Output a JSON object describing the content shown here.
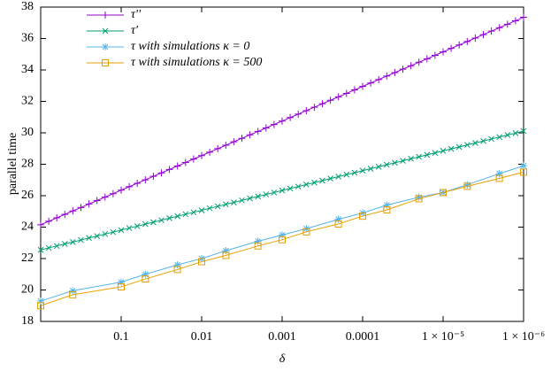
{
  "chart_data": {
    "type": "line",
    "x_label": "δ",
    "y_label": "parallel time",
    "xscale": "log",
    "xlim": [
      1,
      1e-06
    ],
    "ylim": [
      18,
      38
    ],
    "xticks": [
      0.1,
      0.01,
      0.001,
      0.0001,
      {
        "value": 1e-05,
        "label": "1 × 10⁻⁵"
      },
      {
        "value": 1e-06,
        "label": "1 × 10⁻⁶"
      }
    ],
    "yticks": [
      18,
      20,
      22,
      24,
      26,
      28,
      30,
      32,
      34,
      36,
      38
    ],
    "legend": "top-left",
    "series": [
      {
        "name": "τ′′",
        "color": "#9400d3",
        "marker": "plus",
        "x": [
          1,
          0.7943,
          0.631,
          0.5012,
          0.3981,
          0.3162,
          0.2512,
          0.1995,
          0.1585,
          0.1259,
          0.1,
          0.07943,
          0.0631,
          0.05012,
          0.03981,
          0.03162,
          0.02512,
          0.01995,
          0.01585,
          0.01259,
          0.01,
          0.007943,
          0.00631,
          0.005012,
          0.003981,
          0.003162,
          0.002512,
          0.001995,
          0.001585,
          0.001259,
          0.001,
          0.0007943,
          0.000631,
          0.0005012,
          0.0003981,
          0.0003162,
          0.0002512,
          0.0001995,
          0.0001585,
          0.0001259,
          0.0001,
          7.943e-05,
          6.31e-05,
          5.012e-05,
          3.981e-05,
          3.162e-05,
          2.512e-05,
          1.995e-05,
          1.585e-05,
          1.259e-05,
          1e-05,
          7.943e-06,
          6.31e-06,
          5.012e-06,
          3.981e-06,
          3.162e-06,
          2.512e-06,
          1.995e-06,
          1.585e-06,
          1.259e-06,
          1e-06
        ],
        "values": [
          24.15,
          24.37,
          24.59,
          24.81,
          25.03,
          25.25,
          25.47,
          25.69,
          25.91,
          26.13,
          26.35,
          26.57,
          26.79,
          27.01,
          27.23,
          27.45,
          27.67,
          27.89,
          28.11,
          28.33,
          28.55,
          28.77,
          28.99,
          29.21,
          29.43,
          29.65,
          29.87,
          30.09,
          30.31,
          30.53,
          30.75,
          30.97,
          31.19,
          31.41,
          31.63,
          31.85,
          32.07,
          32.29,
          32.51,
          32.73,
          32.95,
          33.17,
          33.39,
          33.61,
          33.83,
          34.05,
          34.27,
          34.49,
          34.71,
          34.93,
          35.15,
          35.37,
          35.59,
          35.81,
          36.03,
          36.25,
          36.47,
          36.69,
          36.91,
          37.13,
          37.35
        ]
      },
      {
        "name": "τ′",
        "color": "#009e73",
        "marker": "cross",
        "x": [
          1,
          0.7943,
          0.631,
          0.5012,
          0.3981,
          0.3162,
          0.2512,
          0.1995,
          0.1585,
          0.1259,
          0.1,
          0.07943,
          0.0631,
          0.05012,
          0.03981,
          0.03162,
          0.02512,
          0.01995,
          0.01585,
          0.01259,
          0.01,
          0.007943,
          0.00631,
          0.005012,
          0.003981,
          0.003162,
          0.002512,
          0.001995,
          0.001585,
          0.001259,
          0.001,
          0.0007943,
          0.000631,
          0.0005012,
          0.0003981,
          0.0003162,
          0.0002512,
          0.0001995,
          0.0001585,
          0.0001259,
          0.0001,
          7.943e-05,
          6.31e-05,
          5.012e-05,
          3.981e-05,
          3.162e-05,
          2.512e-05,
          1.995e-05,
          1.585e-05,
          1.259e-05,
          1e-05,
          7.943e-06,
          6.31e-06,
          5.012e-06,
          3.981e-06,
          3.162e-06,
          2.512e-06,
          1.995e-06,
          1.585e-06,
          1.259e-06,
          1e-06
        ],
        "values": [
          22.55,
          22.68,
          22.8,
          22.93,
          23.05,
          23.18,
          23.31,
          23.43,
          23.56,
          23.68,
          23.81,
          23.94,
          24.06,
          24.19,
          24.31,
          24.44,
          24.57,
          24.69,
          24.82,
          24.94,
          25.07,
          25.2,
          25.32,
          25.45,
          25.57,
          25.7,
          25.83,
          25.95,
          26.08,
          26.2,
          26.33,
          26.46,
          26.58,
          26.71,
          26.83,
          26.96,
          27.09,
          27.21,
          27.34,
          27.46,
          27.59,
          27.72,
          27.84,
          27.97,
          28.09,
          28.22,
          28.35,
          28.47,
          28.6,
          28.72,
          28.85,
          28.98,
          29.1,
          29.23,
          29.35,
          29.48,
          29.61,
          29.73,
          29.86,
          29.98,
          30.11
        ]
      },
      {
        "name": "τ with simulations κ = 0",
        "color": "#56b4e9",
        "marker": "star",
        "x": [
          1,
          0.4,
          0.1,
          0.05,
          0.02,
          0.01,
          0.005,
          0.002,
          0.001,
          0.0005,
          0.0002,
          0.0001,
          5e-05,
          2e-05,
          1e-05,
          5e-06,
          2e-06,
          1e-06
        ],
        "values": [
          19.3,
          19.95,
          20.5,
          21.0,
          21.6,
          22.0,
          22.5,
          23.1,
          23.5,
          23.9,
          24.5,
          24.9,
          25.4,
          25.9,
          26.2,
          26.7,
          27.4,
          27.9
        ]
      },
      {
        "name": "τ with simulations κ = 500",
        "color": "#e69f00",
        "marker": "square",
        "x": [
          1,
          0.4,
          0.1,
          0.05,
          0.02,
          0.01,
          0.005,
          0.002,
          0.001,
          0.0005,
          0.0002,
          0.0001,
          5e-05,
          2e-05,
          1e-05,
          5e-06,
          2e-06,
          1e-06
        ],
        "values": [
          19.0,
          19.7,
          20.2,
          20.7,
          21.3,
          21.8,
          22.2,
          22.8,
          23.2,
          23.7,
          24.2,
          24.7,
          25.1,
          25.8,
          26.2,
          26.6,
          27.1,
          27.5
        ]
      }
    ]
  }
}
